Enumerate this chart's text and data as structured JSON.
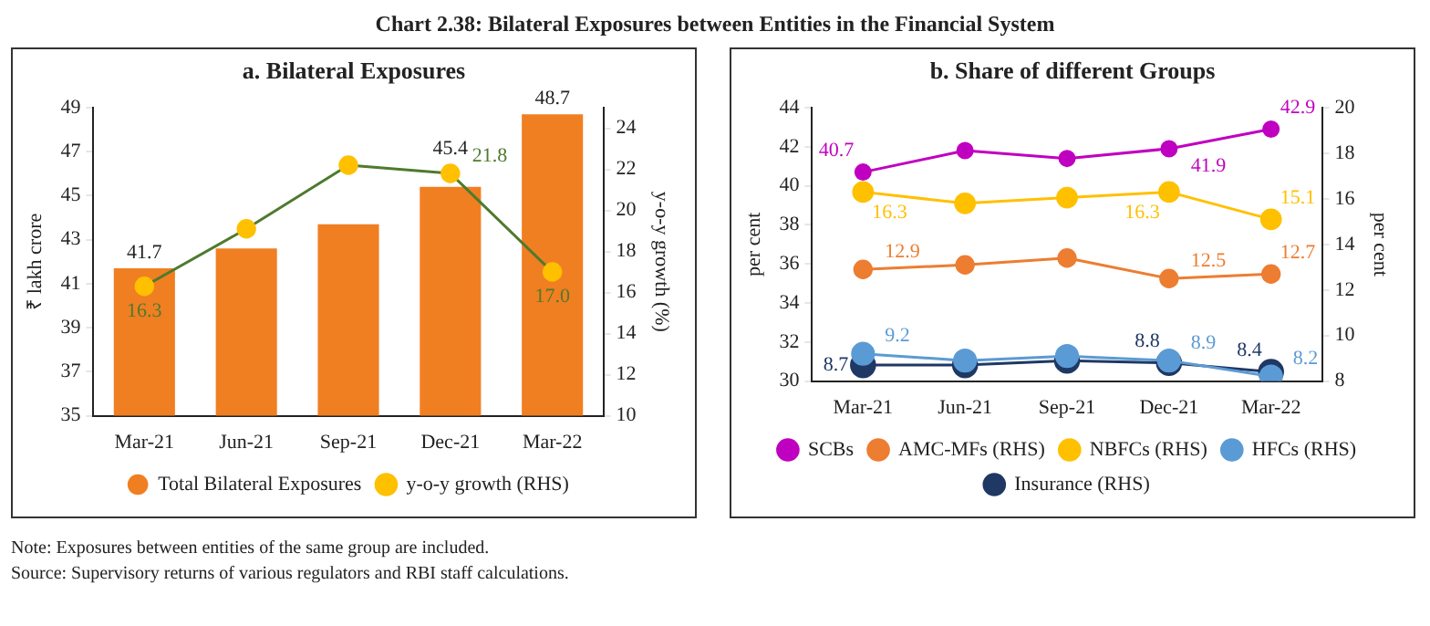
{
  "chart_data": [
    {
      "type": "bar",
      "title": "a. Bilateral Exposures",
      "ylabel": "₹ lakh crore",
      "y2label": "y-o-y growth (%)",
      "categories": [
        "Mar-21",
        "Jun-21",
        "Sep-21",
        "Dec-21",
        "Mar-22"
      ],
      "series": [
        {
          "name": "Total Bilateral Exposures",
          "color": "#f07f22",
          "values": [
            41.7,
            42.6,
            43.7,
            45.4,
            48.7
          ],
          "value_labels": [
            "41.7",
            null,
            null,
            "45.4",
            "48.7"
          ]
        },
        {
          "name": "y-o-y growth (RHS)",
          "type": "line",
          "axis": "y2",
          "color": "#4e7a2e",
          "colors": [
            "#ffc000",
            "#ffc000",
            "#ffc000",
            "#ffc000",
            "#ffc000"
          ],
          "marker": "circle",
          "values": [
            16.3,
            19.1,
            22.2,
            21.8,
            17.0
          ],
          "value_labels": [
            "16.3",
            null,
            null,
            "21.8",
            "17.0"
          ]
        }
      ],
      "ylim": [
        35,
        49
      ],
      "yticks": [
        35,
        37,
        39,
        41,
        43,
        45,
        47,
        49
      ],
      "y2lim": [
        10,
        25
      ],
      "y2ticks": [
        10,
        12,
        14,
        16,
        18,
        20,
        22,
        24
      ],
      "grid": false,
      "legend": "bottom",
      "annotations": [
        "Chart 2.38: Bilateral Exposures between Entities in the Financial System",
        "Note: Exposures between entities of the same group are included.",
        "Source: Supervisory returns of various regulators and RBI staff calculations."
      ]
    },
    {
      "type": "line",
      "title": "b. Share of different Groups",
      "ylabel": "per cent",
      "y2label": "per cent",
      "categories": [
        "Mar-21",
        "Jun-21",
        "Sep-21",
        "Dec-21",
        "Mar-22"
      ],
      "series": [
        {
          "name": "SCBs",
          "color": "#c000c0",
          "values": [
            40.7,
            41.8,
            41.4,
            41.9,
            42.9
          ],
          "value_labels": [
            "40.7",
            null,
            null,
            "41.9",
            "42.9"
          ]
        },
        {
          "name": "AMC-MFs (RHS)",
          "axis": "y2",
          "color": "#ed7d31",
          "values": [
            12.9,
            13.1,
            13.4,
            12.5,
            12.7
          ],
          "value_labels": [
            "12.9",
            null,
            null,
            "12.5",
            "12.7"
          ]
        },
        {
          "name": "NBFCs (RHS)",
          "axis": "y2",
          "color": "#ffc000",
          "values": [
            16.3,
            15.8,
            16.05,
            16.3,
            15.1
          ],
          "value_labels": [
            "16.3",
            null,
            null,
            "16.3",
            "15.1"
          ]
        },
        {
          "name": "HFCs (RHS)",
          "axis": "y2",
          "color": "#5b9bd5",
          "values": [
            9.2,
            8.9,
            9.1,
            8.9,
            8.2
          ],
          "value_labels": [
            "9.2",
            null,
            null,
            "8.9",
            "8.2"
          ]
        },
        {
          "name": "Insurance (RHS)",
          "axis": "y2",
          "color": "#1f3864",
          "values": [
            8.7,
            8.7,
            8.9,
            8.8,
            8.4
          ],
          "value_labels": [
            "8.7",
            null,
            null,
            "8.8",
            "8.4"
          ]
        }
      ],
      "ylim": [
        30,
        44
      ],
      "yticks": [
        30,
        32,
        34,
        36,
        38,
        40,
        42,
        44
      ],
      "y2lim": [
        8,
        20
      ],
      "y2ticks": [
        8,
        10,
        12,
        14,
        16,
        18,
        20
      ],
      "marker": "circle",
      "grid": false,
      "legend": "bottom"
    }
  ]
}
